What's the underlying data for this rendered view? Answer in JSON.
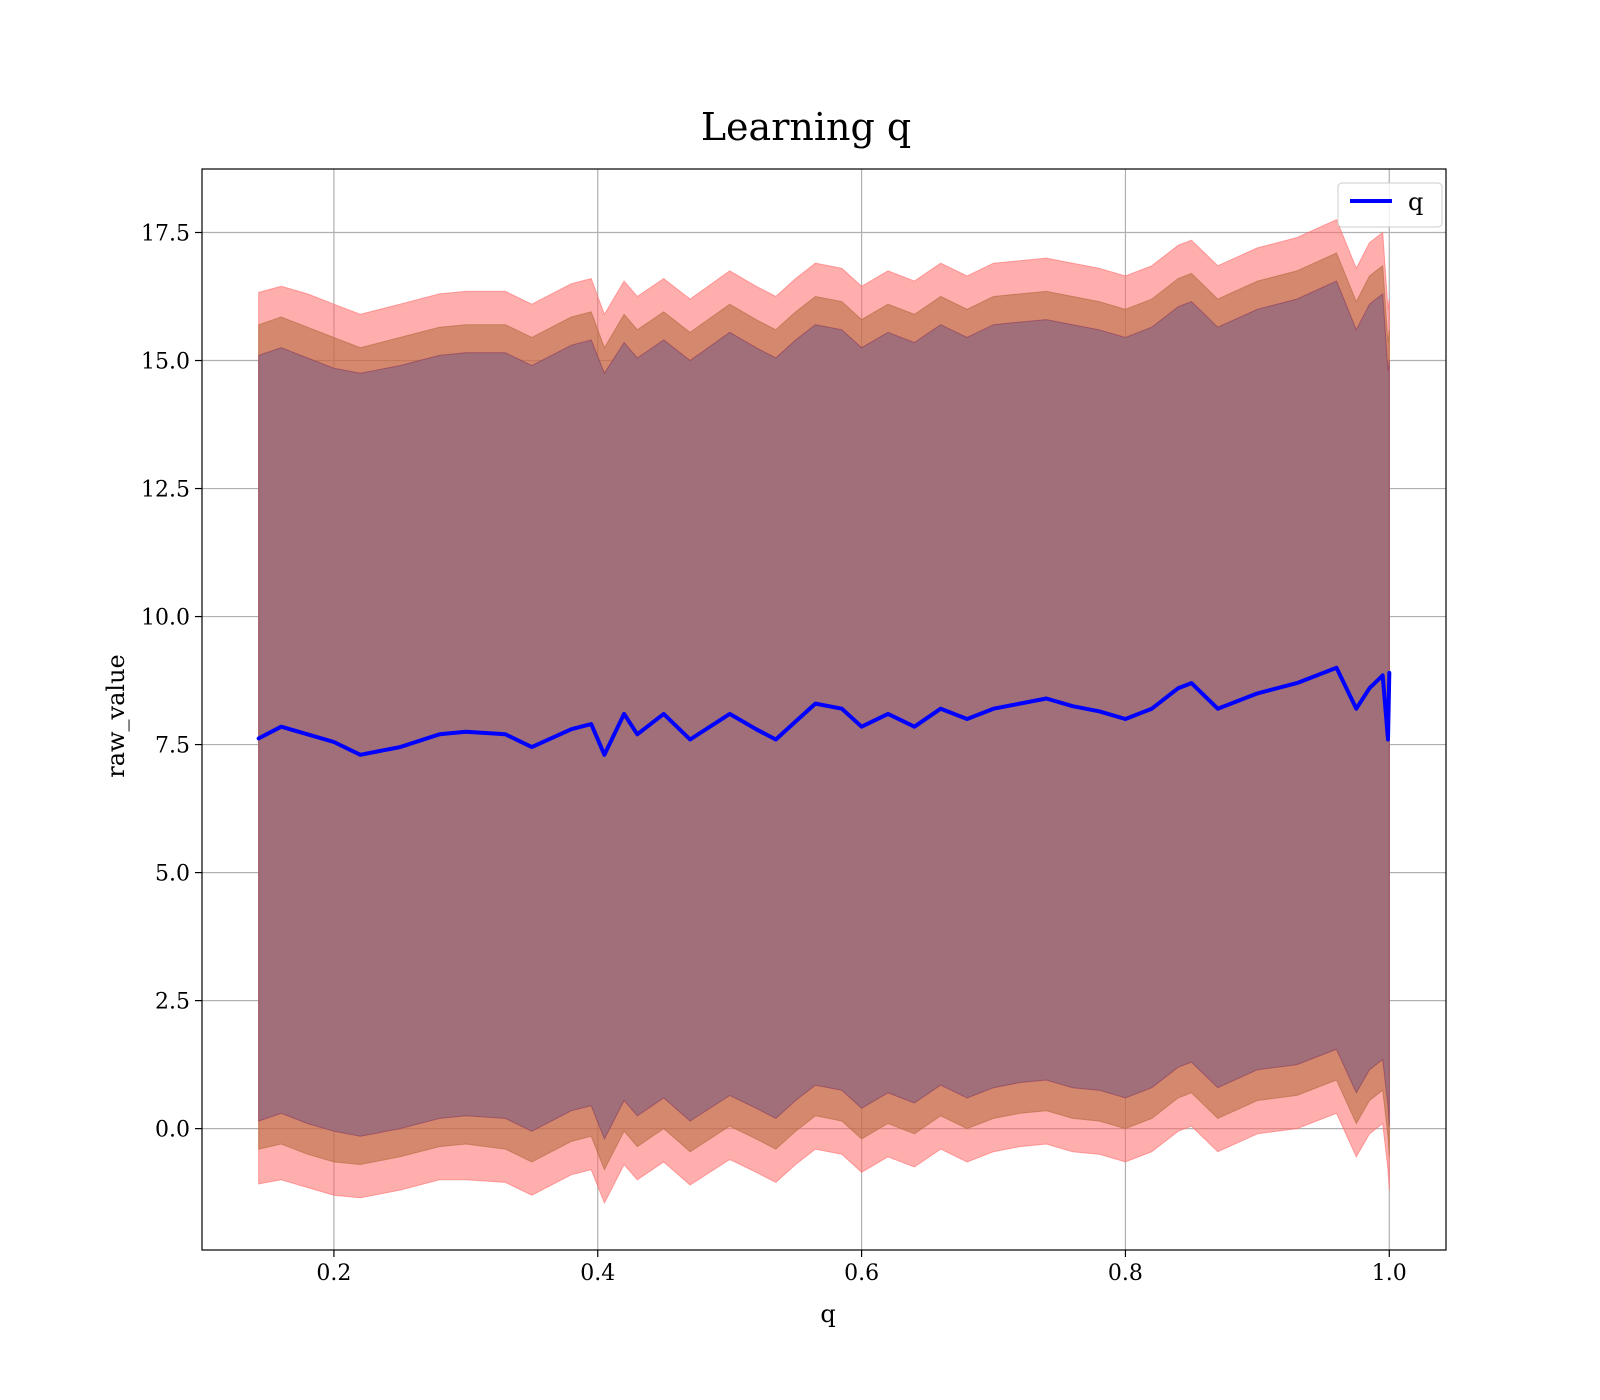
{
  "chart_data": {
    "type": "line",
    "title": "Learning q",
    "xlabel": "q",
    "ylabel": "raw_value",
    "xlim": [
      0.1,
      1.043
    ],
    "ylim": [
      -2.37,
      18.74
    ],
    "xticks": [
      0.2,
      0.4,
      0.6,
      0.8,
      1.0
    ],
    "xtick_labels": [
      "0.2",
      "0.4",
      "0.6",
      "0.8",
      "1.0"
    ],
    "yticks": [
      0.0,
      2.5,
      5.0,
      7.5,
      10.0,
      12.5,
      15.0,
      17.5
    ],
    "ytick_labels": [
      "0.0",
      "2.5",
      "5.0",
      "7.5",
      "10.0",
      "12.5",
      "15.0",
      "17.5"
    ],
    "grid": true,
    "legend": {
      "placement": "top-right",
      "entries": [
        "q"
      ]
    },
    "colors": {
      "line": "#0000ff",
      "band_outer": "#ff6b6b",
      "band_middle": "#b06a3a",
      "band_inner": "#8b3a5c",
      "band_inner_solid": "#a06f79"
    },
    "x": [
      0.143,
      0.16,
      0.18,
      0.2,
      0.22,
      0.25,
      0.28,
      0.3,
      0.33,
      0.35,
      0.38,
      0.395,
      0.405,
      0.42,
      0.43,
      0.45,
      0.47,
      0.5,
      0.52,
      0.535,
      0.55,
      0.565,
      0.585,
      0.6,
      0.62,
      0.64,
      0.66,
      0.68,
      0.7,
      0.72,
      0.74,
      0.76,
      0.78,
      0.8,
      0.82,
      0.84,
      0.85,
      0.87,
      0.9,
      0.93,
      0.96,
      0.975,
      0.985,
      0.995,
      0.999,
      1.0
    ],
    "series": [
      {
        "name": "q",
        "values": [
          7.62,
          7.85,
          7.7,
          7.55,
          7.3,
          7.45,
          7.7,
          7.75,
          7.7,
          7.45,
          7.8,
          7.9,
          7.3,
          8.1,
          7.7,
          8.1,
          7.6,
          8.1,
          7.8,
          7.6,
          7.95,
          8.3,
          8.2,
          7.85,
          8.1,
          7.85,
          8.2,
          8.0,
          8.2,
          8.3,
          8.4,
          8.25,
          8.15,
          8.0,
          8.2,
          8.6,
          8.7,
          8.2,
          8.5,
          8.7,
          9.0,
          8.2,
          8.6,
          8.85,
          7.6,
          8.9
        ]
      }
    ],
    "bands": [
      {
        "upper": [
          16.33,
          16.45,
          16.3,
          16.1,
          15.9,
          16.1,
          16.3,
          16.35,
          16.35,
          16.1,
          16.5,
          16.6,
          15.9,
          16.55,
          16.25,
          16.6,
          16.2,
          16.75,
          16.45,
          16.25,
          16.6,
          16.9,
          16.8,
          16.45,
          16.75,
          16.55,
          16.9,
          16.65,
          16.9,
          16.95,
          17.0,
          16.9,
          16.8,
          16.65,
          16.85,
          17.25,
          17.35,
          16.85,
          17.2,
          17.4,
          17.75,
          16.8,
          17.3,
          17.5,
          16.0,
          16.2
        ],
        "lower": [
          -1.08,
          -1.0,
          -1.15,
          -1.3,
          -1.35,
          -1.2,
          -1.0,
          -1.0,
          -1.05,
          -1.3,
          -0.9,
          -0.8,
          -1.45,
          -0.7,
          -1.0,
          -0.65,
          -1.1,
          -0.6,
          -0.85,
          -1.05,
          -0.7,
          -0.4,
          -0.5,
          -0.85,
          -0.55,
          -0.75,
          -0.4,
          -0.65,
          -0.45,
          -0.35,
          -0.3,
          -0.45,
          -0.5,
          -0.65,
          -0.45,
          -0.05,
          0.05,
          -0.45,
          -0.1,
          0.0,
          0.3,
          -0.55,
          -0.1,
          0.1,
          -0.8,
          -1.2
        ]
      },
      {
        "upper": [
          15.7,
          15.85,
          15.65,
          15.45,
          15.25,
          15.45,
          15.65,
          15.7,
          15.7,
          15.45,
          15.85,
          15.95,
          15.25,
          15.9,
          15.6,
          15.95,
          15.55,
          16.1,
          15.8,
          15.6,
          15.95,
          16.25,
          16.15,
          15.8,
          16.1,
          15.9,
          16.25,
          16.0,
          16.25,
          16.3,
          16.35,
          16.25,
          16.15,
          16.0,
          16.2,
          16.6,
          16.7,
          16.2,
          16.55,
          16.75,
          17.1,
          16.15,
          16.65,
          16.85,
          15.35,
          15.6
        ],
        "lower": [
          -0.4,
          -0.3,
          -0.5,
          -0.65,
          -0.7,
          -0.55,
          -0.35,
          -0.3,
          -0.4,
          -0.65,
          -0.25,
          -0.15,
          -0.8,
          -0.05,
          -0.35,
          0.0,
          -0.45,
          0.05,
          -0.2,
          -0.4,
          -0.05,
          0.25,
          0.15,
          -0.2,
          0.1,
          -0.1,
          0.25,
          0.0,
          0.2,
          0.3,
          0.35,
          0.2,
          0.15,
          0.0,
          0.2,
          0.6,
          0.7,
          0.2,
          0.55,
          0.65,
          0.95,
          0.1,
          0.55,
          0.75,
          -0.15,
          -0.55
        ]
      },
      {
        "upper": [
          15.1,
          15.25,
          15.05,
          14.85,
          14.75,
          14.9,
          15.1,
          15.15,
          15.15,
          14.9,
          15.3,
          15.4,
          14.75,
          15.35,
          15.05,
          15.4,
          15.0,
          15.55,
          15.25,
          15.05,
          15.4,
          15.7,
          15.6,
          15.25,
          15.55,
          15.35,
          15.7,
          15.45,
          15.7,
          15.75,
          15.8,
          15.7,
          15.6,
          15.45,
          15.65,
          16.05,
          16.15,
          15.65,
          16.0,
          16.2,
          16.55,
          15.6,
          16.1,
          16.3,
          14.8,
          15.0
        ],
        "lower": [
          0.15,
          0.3,
          0.1,
          -0.05,
          -0.15,
          0.0,
          0.2,
          0.25,
          0.2,
          -0.05,
          0.35,
          0.45,
          -0.2,
          0.55,
          0.25,
          0.6,
          0.15,
          0.65,
          0.4,
          0.2,
          0.55,
          0.85,
          0.75,
          0.4,
          0.7,
          0.5,
          0.85,
          0.6,
          0.8,
          0.9,
          0.95,
          0.8,
          0.75,
          0.6,
          0.8,
          1.2,
          1.3,
          0.8,
          1.15,
          1.25,
          1.55,
          0.7,
          1.15,
          1.35,
          0.45,
          0.05
        ]
      }
    ]
  }
}
